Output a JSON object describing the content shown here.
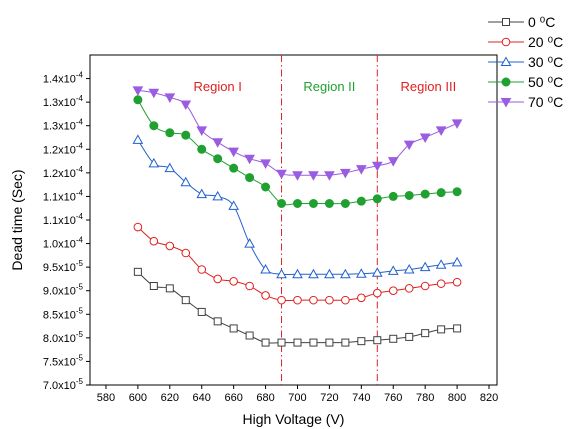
{
  "chart_data": {
    "type": "line",
    "title": "",
    "xlabel": "High Voltage (V)",
    "ylabel": "Dead time (Sec)",
    "xlim": [
      570,
      825
    ],
    "ylim": [
      7e-05,
      0.00014
    ],
    "x_ticks": [
      580,
      600,
      620,
      640,
      660,
      680,
      700,
      720,
      740,
      760,
      780,
      800,
      820
    ],
    "y_ticks": [
      {
        "value": 7e-05,
        "mant": "7.0x10",
        "exp": "-5"
      },
      {
        "value": 7.5e-05,
        "mant": "7.5x10",
        "exp": "-5"
      },
      {
        "value": 8e-05,
        "mant": "8.0x10",
        "exp": "-5"
      },
      {
        "value": 8.5e-05,
        "mant": "8.5x10",
        "exp": "-5"
      },
      {
        "value": 9e-05,
        "mant": "9.0x10",
        "exp": "-5"
      },
      {
        "value": 9.5e-05,
        "mant": "9.5x10",
        "exp": "-5"
      },
      {
        "value": 0.0001,
        "mant": "1.0x10",
        "exp": "-4"
      },
      {
        "value": 0.000105,
        "mant": "1.1x10",
        "exp": "-4"
      },
      {
        "value": 0.00011,
        "mant": "1.1x10",
        "exp": "-4"
      },
      {
        "value": 0.000115,
        "mant": "1.2x10",
        "exp": "-4"
      },
      {
        "value": 0.00012,
        "mant": "1.2x10",
        "exp": "-4"
      },
      {
        "value": 0.000125,
        "mant": "1.3x10",
        "exp": "-4"
      },
      {
        "value": 0.00013,
        "mant": "1.3x10",
        "exp": "-4"
      },
      {
        "value": 0.000135,
        "mant": "1.4x10",
        "exp": "-4"
      }
    ],
    "x": [
      600,
      610,
      620,
      630,
      640,
      650,
      660,
      670,
      680,
      690,
      700,
      710,
      720,
      730,
      740,
      750,
      760,
      770,
      780,
      790,
      800
    ],
    "series": [
      {
        "name": "0 ⁰C",
        "color": "#404040",
        "marker": "square",
        "values": [
          9.4e-05,
          9.1e-05,
          9.05e-05,
          8.8e-05,
          8.55e-05,
          8.35e-05,
          8.2e-05,
          8.05e-05,
          7.9e-05,
          7.9e-05,
          7.9e-05,
          7.9e-05,
          7.9e-05,
          7.9e-05,
          7.93e-05,
          7.95e-05,
          7.98e-05,
          8.02e-05,
          8.1e-05,
          8.18e-05,
          8.2e-05
        ]
      },
      {
        "name": "20 ⁰C",
        "color": "#e02020",
        "marker": "circle",
        "values": [
          0.0001035,
          0.0001005,
          9.95e-05,
          9.8e-05,
          9.45e-05,
          9.25e-05,
          9.2e-05,
          9.1e-05,
          8.9e-05,
          8.8e-05,
          8.8e-05,
          8.8e-05,
          8.8e-05,
          8.8e-05,
          8.85e-05,
          8.95e-05,
          9e-05,
          9.05e-05,
          9.1e-05,
          9.15e-05,
          9.18e-05
        ]
      },
      {
        "name": "30 ⁰C",
        "color": "#2060d0",
        "marker": "triangle-up",
        "values": [
          0.000122,
          0.000117,
          0.000116,
          0.000113,
          0.0001105,
          0.00011,
          0.000108,
          0.0001,
          9.45e-05,
          9.35e-05,
          9.35e-05,
          9.35e-05,
          9.35e-05,
          9.35e-05,
          9.36e-05,
          9.38e-05,
          9.42e-05,
          9.45e-05,
          9.5e-05,
          9.55e-05,
          9.6e-05
        ]
      },
      {
        "name": "50 ⁰C",
        "color": "#20a030",
        "marker": "circle-filled",
        "values": [
          0.0001305,
          0.000125,
          0.0001235,
          0.000123,
          0.00012,
          0.000118,
          0.000116,
          0.000114,
          0.000112,
          0.0001085,
          0.0001085,
          0.0001085,
          0.0001085,
          0.0001085,
          0.000109,
          0.0001095,
          0.00011,
          0.0001102,
          0.0001105,
          0.0001108,
          0.000111
        ]
      },
      {
        "name": "70 ⁰C",
        "color": "#9a5ce0",
        "marker": "triangle-down-filled",
        "values": [
          0.0001325,
          0.000132,
          0.000131,
          0.0001295,
          0.000124,
          0.0001215,
          0.0001195,
          0.000118,
          0.000117,
          0.0001148,
          0.0001145,
          0.0001145,
          0.0001145,
          0.000115,
          0.0001158,
          0.0001165,
          0.0001175,
          0.000121,
          0.0001225,
          0.000124,
          0.0001255
        ]
      }
    ],
    "regions": [
      {
        "label": "Region I",
        "color": "#e02020",
        "x_center": 650
      },
      {
        "label": "Region II",
        "color": "#20a030",
        "x_center": 720
      },
      {
        "label": "Region III",
        "color": "#e02020",
        "x_center": 782
      }
    ],
    "region_boundaries": [
      {
        "x": 690,
        "color": "#e02020"
      },
      {
        "x": 750,
        "color": "#e02020"
      }
    ],
    "legend_position": "top-right",
    "grid": false
  }
}
